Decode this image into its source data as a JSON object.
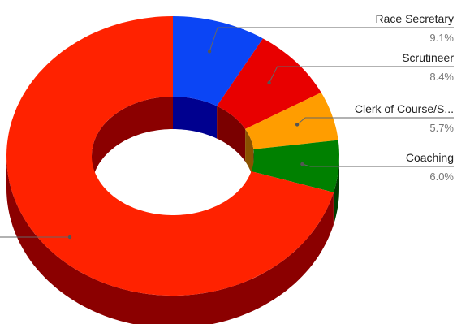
{
  "chart_data": {
    "type": "pie",
    "style": "3d-donut",
    "legend": "none",
    "slices": [
      {
        "label": "Race Secretary",
        "percent_label": "9.1%",
        "value": 9.1,
        "color": "#0b45f5",
        "side_color": "#00008f"
      },
      {
        "label": "Scrutineer",
        "percent_label": "8.4%",
        "value": 8.4,
        "color": "#e80000",
        "side_color": "#7a0000"
      },
      {
        "label": "Clerk of Course/S...",
        "percent_label": "5.7%",
        "value": 5.7,
        "color": "#ff9d00",
        "side_color": "#8a5200"
      },
      {
        "label": "Coaching",
        "percent_label": "6.0%",
        "value": 6.0,
        "color": "#008000",
        "side_color": "#003d00"
      },
      {
        "label": "",
        "percent_label": "",
        "value": 70.8,
        "color": "#ff2200",
        "side_color": "#8b0000"
      }
    ]
  }
}
